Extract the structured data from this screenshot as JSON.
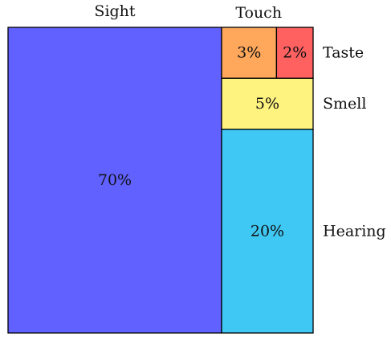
{
  "chart_data": {
    "type": "treemap",
    "items": [
      {
        "name": "Sight",
        "value": 70,
        "label": "70%",
        "color": "#6161ff"
      },
      {
        "name": "Hearing",
        "value": 20,
        "label": "20%",
        "color": "#40c8f4"
      },
      {
        "name": "Smell",
        "value": 5,
        "label": "5%",
        "color": "#fff380"
      },
      {
        "name": "Touch",
        "value": 3,
        "label": "3%",
        "color": "#ffa85c"
      },
      {
        "name": "Taste",
        "value": 2,
        "label": "2%",
        "color": "#ff6161"
      }
    ]
  }
}
